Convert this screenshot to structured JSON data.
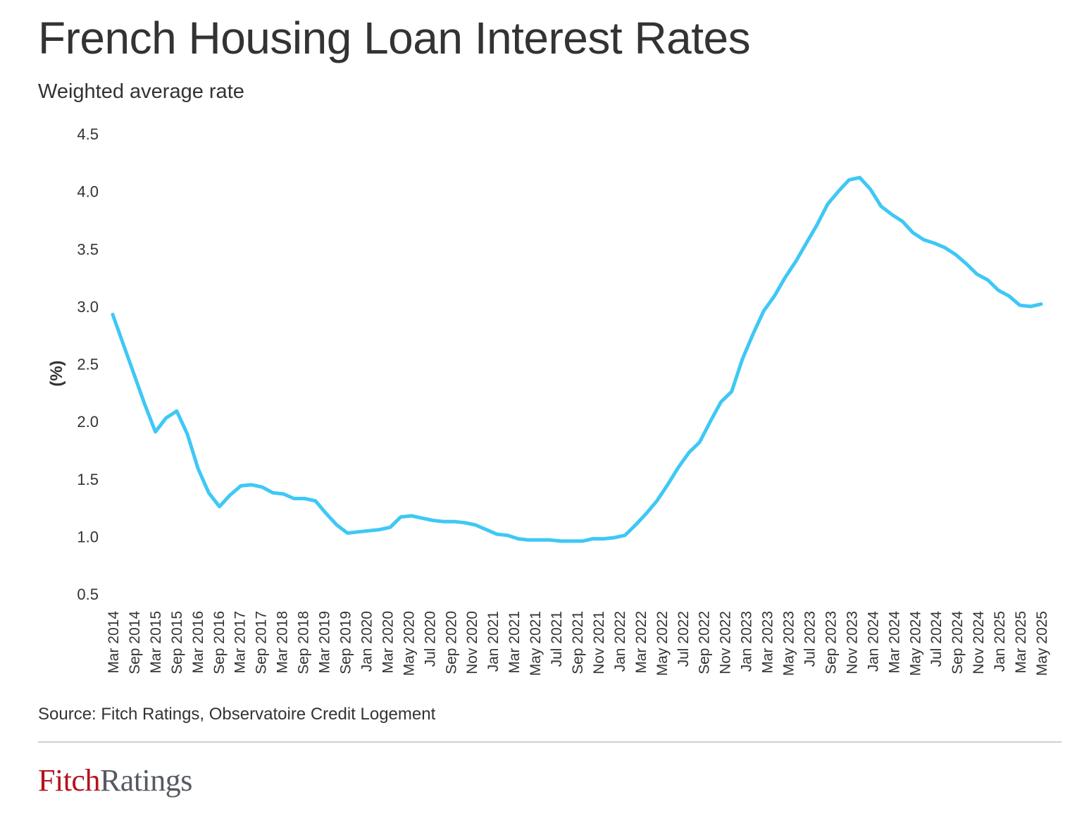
{
  "header": {
    "title": "French Housing Loan Interest Rates",
    "subtitle": "Weighted average rate"
  },
  "footer": {
    "source": "Source: Fitch Ratings, Observatoire Credit Logement",
    "logo_part1": "Fitch",
    "logo_part2": "Ratings"
  },
  "colors": {
    "line": "#3ec8f5",
    "text": "#333333",
    "logo_red": "#b5121b",
    "logo_gray": "#555a60",
    "divider": "#cfcfcf"
  },
  "chart_data": {
    "type": "line",
    "ylabel": "(%)",
    "ylim": [
      0.5,
      4.5
    ],
    "y_ticks": [
      4.5,
      4.0,
      3.5,
      3.0,
      2.5,
      2.0,
      1.5,
      1.0,
      0.5
    ],
    "grid": false,
    "x_tick_labels": [
      "Mar 2014",
      "Sep 2014",
      "Mar 2015",
      "Sep 2015",
      "Mar 2016",
      "Sep 2016",
      "Mar 2017",
      "Sep 2017",
      "Mar 2018",
      "Sep 2018",
      "Mar 2019",
      "Sep 2019",
      "Jan 2020",
      "Mar 2020",
      "May 2020",
      "Jul 2020",
      "Sep 2020",
      "Nov 2020",
      "Jan 2021",
      "Mar 2021",
      "May 2021",
      "Jul 2021",
      "Sep 2021",
      "Nov 2021",
      "Jan 2022",
      "Mar 2022",
      "May 2022",
      "Jul 2022",
      "Sep 2022",
      "Nov 2022",
      "Jan 2023",
      "Mar 2023",
      "May 2023",
      "Jul 2023",
      "Sep 2023",
      "Nov 2023",
      "Jan 2024",
      "Mar 2024",
      "May 2024",
      "Jul 2024",
      "Sep 2024",
      "Nov 2024",
      "Jan 2025",
      "Mar 2025",
      "May 2025"
    ],
    "series": [
      {
        "values": [
          2.93,
          2.67,
          2.41,
          2.15,
          1.91,
          2.03,
          2.09,
          1.89,
          1.59,
          1.38,
          1.26,
          1.36,
          1.44,
          1.45,
          1.43,
          1.38,
          1.37,
          1.33,
          1.33,
          1.31,
          1.2,
          1.1,
          1.03,
          1.04,
          1.05,
          1.06,
          1.08,
          1.17,
          1.18,
          1.16,
          1.14,
          1.13,
          1.13,
          1.12,
          1.1,
          1.06,
          1.02,
          1.01,
          0.98,
          0.97,
          0.97,
          0.97,
          0.96,
          0.96,
          0.96,
          0.98,
          0.98,
          0.99,
          1.01,
          1.1,
          1.2,
          1.31,
          1.45,
          1.6,
          1.73,
          1.82,
          2.0,
          2.17,
          2.26,
          2.54,
          2.76,
          2.96,
          3.09,
          3.25,
          3.39,
          3.55,
          3.71,
          3.89,
          4.0,
          4.1,
          4.12,
          4.02,
          3.87,
          3.8,
          3.74,
          3.64,
          3.58,
          3.55,
          3.51,
          3.45,
          3.37,
          3.28,
          3.23,
          3.14,
          3.09,
          3.01,
          3.0,
          3.02
        ]
      }
    ]
  }
}
